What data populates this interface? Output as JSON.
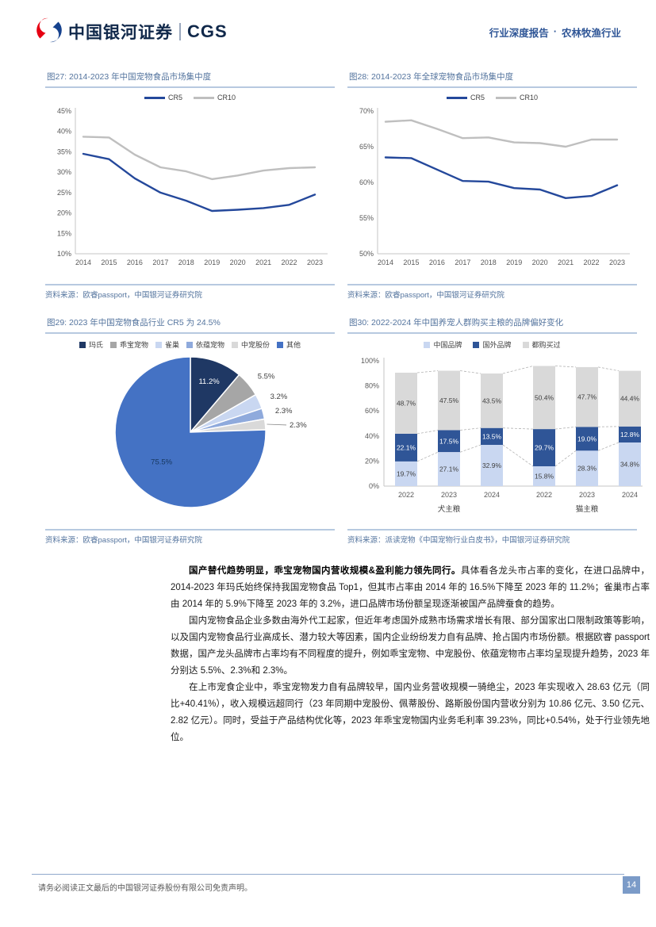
{
  "header": {
    "brand_cn": "中国银河证券",
    "brand_en": "CGS",
    "report_type": "行业深度报告",
    "dot": "·",
    "industry": "农林牧渔行业"
  },
  "chart_data": [
    {
      "type": "line",
      "title": "图27: 2014-2023 年中国宠物食品市场集中度",
      "x": [
        "2014",
        "2015",
        "2016",
        "2017",
        "2018",
        "2019",
        "2020",
        "2021",
        "2022",
        "2023"
      ],
      "ylim": [
        10,
        45
      ],
      "ystep": 5,
      "grid": false,
      "legend_position": "top",
      "series": [
        {
          "name": "CR5",
          "color": "#24489b",
          "values": [
            34.5,
            33.2,
            28.5,
            25.0,
            23.0,
            20.5,
            20.8,
            21.2,
            22.0,
            24.5
          ]
        },
        {
          "name": "CR10",
          "color": "#bfbfbf",
          "values": [
            38.7,
            38.5,
            34.3,
            31.2,
            30.2,
            28.3,
            29.2,
            30.4,
            31.0,
            31.2
          ]
        }
      ],
      "source": "资料来源：欧睿passport，中国银河证券研究院"
    },
    {
      "type": "line",
      "title": "图28: 2014-2023 年全球宠物食品市场集中度",
      "x": [
        "2014",
        "2015",
        "2016",
        "2017",
        "2018",
        "2019",
        "2020",
        "2021",
        "2022",
        "2023"
      ],
      "ylim": [
        50,
        70
      ],
      "ystep": 5,
      "grid": false,
      "legend_position": "top",
      "series": [
        {
          "name": "CR5",
          "color": "#24489b",
          "values": [
            63.5,
            63.4,
            61.8,
            60.2,
            60.1,
            59.2,
            59.0,
            57.8,
            58.1,
            59.6
          ]
        },
        {
          "name": "CR10",
          "color": "#bfbfbf",
          "values": [
            68.5,
            68.7,
            67.5,
            66.2,
            66.3,
            65.6,
            65.5,
            65.0,
            66.0,
            66.0
          ]
        }
      ],
      "source": "资料来源：欧睿passport，中国银河证券研究院"
    },
    {
      "type": "pie",
      "title": "图29: 2023 年中国宠物食品行业 CR5 为 24.5%",
      "legend_position": "top",
      "slices": [
        {
          "name": "玛氏",
          "value": 11.2,
          "label": "11.2%",
          "color": "#1f3864",
          "label_style": "inside-light"
        },
        {
          "name": "乖宝宠物",
          "value": 5.5,
          "label": "5.5%",
          "color": "#a6a6a6",
          "label_style": "outside"
        },
        {
          "name": "雀巢",
          "value": 3.2,
          "label": "3.2%",
          "color": "#c9d7f1",
          "label_style": "outside"
        },
        {
          "name": "依蕴宠物",
          "value": 2.3,
          "label": "2.3%",
          "color": "#8faadc",
          "label_style": "outside"
        },
        {
          "name": "中宠股份",
          "value": 2.3,
          "label": "2.3%",
          "color": "#d9d9d9",
          "label_style": "leader"
        },
        {
          "name": "其他",
          "value": 75.5,
          "label": "75.5%",
          "color": "#4472c4",
          "label_style": "inside-dark"
        }
      ],
      "source": "资料来源：欧睿passport，中国银河证券研究院"
    },
    {
      "type": "stacked-bar",
      "title": "图30: 2022-2024 年中国养宠人群购买主粮的品牌偏好变化",
      "ylim": [
        0,
        100
      ],
      "ystep": 20,
      "legend_position": "top",
      "groups": [
        {
          "label": "犬主粮",
          "categories": [
            "2022",
            "2023",
            "2024"
          ]
        },
        {
          "label": "猫主粮",
          "categories": [
            "2022",
            "2023",
            "2024"
          ]
        }
      ],
      "series": [
        {
          "name": "中国品牌",
          "color": "#c9d7f1",
          "values": [
            [
              19.7,
              27.1,
              32.9
            ],
            [
              15.8,
              28.3,
              34.8
            ]
          ]
        },
        {
          "name": "国外品牌",
          "color": "#2f5597",
          "values": [
            [
              22.1,
              17.5,
              13.5
            ],
            [
              29.7,
              19.0,
              12.8
            ]
          ]
        },
        {
          "name": "都购买过",
          "color": "#d9d9d9",
          "values": [
            [
              48.7,
              47.5,
              43.5
            ],
            [
              50.4,
              47.7,
              44.4
            ]
          ]
        }
      ],
      "source": "资料来源：派读宠物《中国宠物行业白皮书》，中国银河证券研究院"
    }
  ],
  "body": {
    "paragraphs": [
      {
        "lead": "国产替代趋势明显，乖宝宠物国内营收规模&盈利能力领先同行。",
        "text": "具体看各龙头市占率的变化，在进口品牌中，2014-2023 年玛氏始终保持我国宠物食品 Top1，但其市占率由 2014 年的 16.5%下降至 2023 年的 11.2%；雀巢市占率由 2014 年的 5.9%下降至 2023 年的 3.2%，进口品牌市场份额呈现逐渐被国产品牌蚕食的趋势。"
      },
      {
        "lead": "",
        "text": "国内宠物食品企业多数由海外代工起家，但近年考虑国外成熟市场需求增长有限、部分国家出口限制政策等影响，以及国内宠物食品行业高成长、潜力较大等因素，国内企业纷纷发力自有品牌、抢占国内市场份额。根据欧睿 passport 数据，国产龙头品牌市占率均有不同程度的提升，例如乖宝宠物、中宠股份、依蕴宠物市占率均呈现提升趋势，2023 年分别达 5.5%、2.3%和 2.3%。"
      },
      {
        "lead": "",
        "text": "在上市宠食企业中，乖宝宠物发力自有品牌较早，国内业务营收规模一骑绝尘，2023 年实现收入 28.63 亿元（同比+40.41%），收入规模远超同行（23 年同期中宠股份、佩蒂股份、路斯股份国内营收分别为 10.86 亿元、3.50 亿元、2.82 亿元）。同时，受益于产品结构优化等，2023 年乖宝宠物国内业务毛利率 39.23%，同比+0.54%，处于行业领先地位。"
      }
    ]
  },
  "footer": {
    "disclaimer": "请务必阅读正文最后的中国银河证券股份有限公司免责声明。",
    "page_number": "14"
  }
}
